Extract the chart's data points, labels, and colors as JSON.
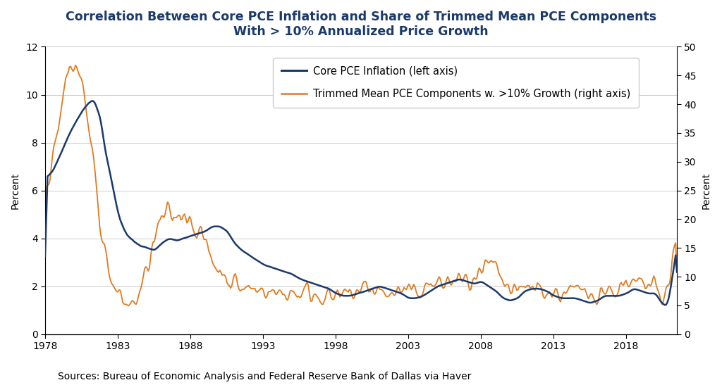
{
  "title_line1": "Correlation Between Core PCE Inflation and Share of Trimmed Mean PCE Components",
  "title_line2": "With > 10% Annualized Price Growth",
  "title_color": "#1a3a6b",
  "left_ylabel": "Percent",
  "right_ylabel": "Percent",
  "source_text": "Sources: Bureau of Economic Analysis and Federal Reserve Bank of Dallas via Haver",
  "left_ylim": [
    0,
    12
  ],
  "right_ylim": [
    0,
    50
  ],
  "left_yticks": [
    0,
    2,
    4,
    6,
    8,
    10,
    12
  ],
  "right_yticks": [
    0,
    5,
    10,
    15,
    20,
    25,
    30,
    35,
    40,
    45,
    50
  ],
  "xtick_labels": [
    "1978",
    "1983",
    "1988",
    "1993",
    "1998",
    "2003",
    "2008",
    "2013",
    "2018"
  ],
  "pce_color": "#1a3a6b",
  "trimmed_color": "#e07b20",
  "legend_pce": "Core PCE Inflation (left axis)",
  "legend_trimmed": "Trimmed Mean PCE Components w. >10% Growth (right axis)",
  "background_color": "#ffffff",
  "grid_color": "#cccccc",
  "title_fontsize": 12.5,
  "axis_label_fontsize": 10,
  "tick_fontsize": 10,
  "source_fontsize": 10,
  "legend_fontsize": 10.5
}
